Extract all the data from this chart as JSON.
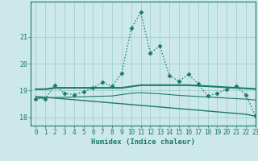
{
  "xlabel": "Humidex (Indice chaleur)",
  "ylabel": "",
  "background_color": "#cce8e8",
  "grid_color": "#99cccc",
  "line_color": "#1a7a6a",
  "xlim": [
    -0.5,
    23
  ],
  "ylim": [
    17.7,
    22.3
  ],
  "yticks": [
    18,
    19,
    20,
    21
  ],
  "xticks": [
    0,
    1,
    2,
    3,
    4,
    5,
    6,
    7,
    8,
    9,
    10,
    11,
    12,
    13,
    14,
    15,
    16,
    17,
    18,
    19,
    20,
    21,
    22,
    23
  ],
  "series": [
    {
      "x": [
        0,
        1,
        2,
        3,
        4,
        5,
        6,
        7,
        8,
        9,
        10,
        11,
        12,
        13,
        14,
        15,
        16,
        17,
        18,
        19,
        20,
        21,
        22,
        23
      ],
      "y": [
        18.7,
        18.7,
        19.2,
        18.9,
        18.85,
        18.95,
        19.1,
        19.3,
        19.15,
        19.65,
        21.3,
        21.9,
        20.4,
        20.65,
        19.55,
        19.35,
        19.6,
        19.25,
        18.8,
        18.9,
        19.05,
        19.15,
        18.85,
        18.05
      ],
      "marker": "D",
      "markersize": 2.5,
      "linewidth": 1.0,
      "linestyle": "dotted"
    },
    {
      "x": [
        0,
        1,
        2,
        3,
        4,
        5,
        6,
        7,
        8,
        9,
        10,
        11,
        12,
        13,
        14,
        15,
        16,
        17,
        18,
        19,
        20,
        21,
        22,
        23
      ],
      "y": [
        19.05,
        19.05,
        19.1,
        19.1,
        19.1,
        19.1,
        19.1,
        19.1,
        19.1,
        19.1,
        19.15,
        19.2,
        19.2,
        19.2,
        19.2,
        19.2,
        19.2,
        19.18,
        19.16,
        19.14,
        19.12,
        19.1,
        19.08,
        19.06
      ],
      "marker": null,
      "linewidth": 1.5,
      "linestyle": "solid"
    },
    {
      "x": [
        0,
        1,
        2,
        3,
        4,
        5,
        6,
        7,
        8,
        9,
        10,
        11,
        12,
        13,
        14,
        15,
        16,
        17,
        18,
        19,
        20,
        21,
        22,
        23
      ],
      "y": [
        18.78,
        18.75,
        18.72,
        18.69,
        18.66,
        18.63,
        18.6,
        18.57,
        18.54,
        18.51,
        18.48,
        18.45,
        18.42,
        18.39,
        18.36,
        18.33,
        18.3,
        18.27,
        18.24,
        18.21,
        18.18,
        18.15,
        18.12,
        18.05
      ],
      "marker": null,
      "linewidth": 1.0,
      "linestyle": "solid"
    },
    {
      "x": [
        0,
        1,
        2,
        3,
        4,
        5,
        6,
        7,
        8,
        9,
        10,
        11,
        12,
        13,
        14,
        15,
        16,
        17,
        18,
        19,
        20,
        21,
        22,
        23
      ],
      "y": [
        18.72,
        18.73,
        18.74,
        18.75,
        18.76,
        18.77,
        18.78,
        18.79,
        18.8,
        18.85,
        18.9,
        18.92,
        18.9,
        18.88,
        18.85,
        18.82,
        18.8,
        18.78,
        18.76,
        18.74,
        18.72,
        18.7,
        18.68,
        18.65
      ],
      "marker": null,
      "linewidth": 0.8,
      "linestyle": "solid"
    }
  ]
}
